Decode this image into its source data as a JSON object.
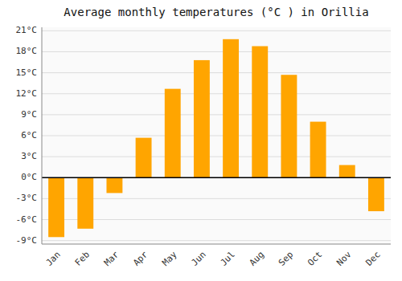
{
  "chart_data": {
    "type": "bar",
    "title": "Average monthly temperatures (°C ) in Orillia",
    "categories": [
      "Jan",
      "Feb",
      "Mar",
      "Apr",
      "May",
      "Jun",
      "Jul",
      "Aug",
      "Sep",
      "Oct",
      "Nov",
      "Dec"
    ],
    "values": [
      -8.5,
      -7.3,
      -2.2,
      5.7,
      12.7,
      16.8,
      19.8,
      18.8,
      14.7,
      8.0,
      1.8,
      -4.8
    ],
    "color": "#FFA500",
    "ylim": [
      -9.5,
      21.5
    ],
    "yticks": [
      {
        "value": -9,
        "label": "-9°C"
      },
      {
        "value": -6,
        "label": "-6°C"
      },
      {
        "value": -3,
        "label": "-3°C"
      },
      {
        "value": 0,
        "label": "0°C"
      },
      {
        "value": 3,
        "label": "3°C"
      },
      {
        "value": 6,
        "label": "6°C"
      },
      {
        "value": 9,
        "label": "9°C"
      },
      {
        "value": 12,
        "label": "12°C"
      },
      {
        "value": 15,
        "label": "15°C"
      },
      {
        "value": 18,
        "label": "18°C"
      },
      {
        "value": 21,
        "label": "21°C"
      }
    ],
    "grid": true
  }
}
